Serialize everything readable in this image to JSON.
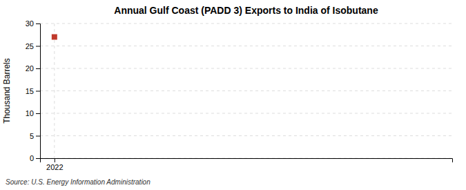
{
  "chart_data": {
    "type": "scatter",
    "title": "Annual Gulf Coast (PADD 3) Exports to India of Isobutane",
    "ylabel": "Thousand Barrels",
    "annotations": [
      "Source: U.S. Energy Information Administration"
    ],
    "x": [
      2022
    ],
    "values": [
      27
    ],
    "color": "#c0392b",
    "marker": "square",
    "xlim": [
      2021.7,
      2030.3
    ],
    "ylim": [
      0,
      30
    ],
    "xticks": [
      2022
    ],
    "yticks": [
      0,
      5,
      10,
      15,
      20,
      25,
      30
    ],
    "grid": true
  }
}
